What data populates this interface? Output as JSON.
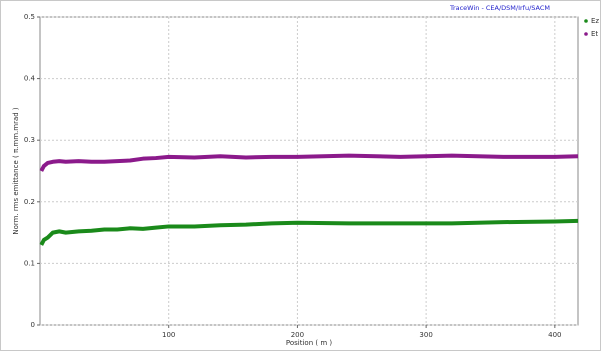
{
  "chart_data": {
    "type": "line",
    "title": "TraceWin - CEA/DSM/Irfu/SACM",
    "x_label": "Position ( m )",
    "y_label": "Norm. rms emittance ( π.mm.mrad )",
    "x": [
      1,
      3,
      6,
      10,
      15,
      20,
      30,
      40,
      50,
      60,
      70,
      80,
      90,
      100,
      120,
      140,
      160,
      180,
      200,
      240,
      280,
      320,
      360,
      400,
      418
    ],
    "series": [
      {
        "name": "Ez",
        "color": "#1a8a1a",
        "values": [
          0.13,
          0.138,
          0.142,
          0.15,
          0.152,
          0.15,
          0.152,
          0.153,
          0.155,
          0.155,
          0.157,
          0.156,
          0.158,
          0.16,
          0.16,
          0.162,
          0.163,
          0.165,
          0.166,
          0.165,
          0.165,
          0.165,
          0.167,
          0.168,
          0.169
        ]
      },
      {
        "name": "Et",
        "color": "#8b1a8b",
        "values": [
          0.25,
          0.258,
          0.263,
          0.265,
          0.266,
          0.265,
          0.266,
          0.265,
          0.265,
          0.266,
          0.267,
          0.27,
          0.271,
          0.273,
          0.272,
          0.274,
          0.272,
          0.273,
          0.273,
          0.275,
          0.273,
          0.275,
          0.273,
          0.273,
          0.274
        ]
      }
    ],
    "xlim": [
      0,
      418
    ],
    "xticks": [
      100,
      200,
      300,
      400
    ],
    "ylim": [
      0,
      0.5
    ],
    "yticks": [
      0,
      0.1,
      0.2,
      0.3,
      0.4,
      0.5
    ],
    "grid": true,
    "legend": "top-right"
  }
}
